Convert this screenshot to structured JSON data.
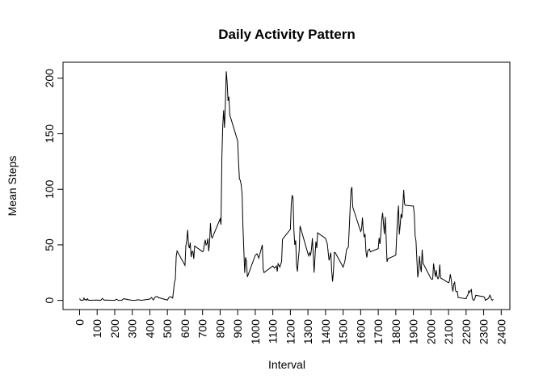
{
  "chart_data": {
    "type": "line",
    "title": "Daily Activity Pattern",
    "xlabel": "Interval",
    "ylabel": "Mean Steps",
    "color": "#000000",
    "x": [
      0,
      5,
      10,
      15,
      20,
      25,
      30,
      35,
      40,
      45,
      50,
      55,
      100,
      110,
      120,
      130,
      140,
      150,
      200,
      210,
      220,
      230,
      240,
      250,
      300,
      310,
      320,
      330,
      340,
      350,
      400,
      410,
      420,
      430,
      440,
      450,
      500,
      510,
      520,
      530,
      540,
      545,
      550,
      555,
      600,
      605,
      610,
      615,
      620,
      625,
      630,
      635,
      640,
      645,
      650,
      655,
      700,
      705,
      710,
      715,
      720,
      725,
      730,
      735,
      740,
      745,
      750,
      755,
      800,
      805,
      810,
      815,
      820,
      825,
      830,
      835,
      840,
      845,
      850,
      855,
      900,
      905,
      910,
      915,
      920,
      925,
      930,
      935,
      940,
      945,
      950,
      955,
      1000,
      1010,
      1020,
      1030,
      1040,
      1045,
      1050,
      1100,
      1110,
      1120,
      1125,
      1130,
      1140,
      1150,
      1155,
      1200,
      1205,
      1210,
      1215,
      1220,
      1225,
      1230,
      1235,
      1240,
      1245,
      1250,
      1255,
      1300,
      1305,
      1310,
      1315,
      1320,
      1325,
      1330,
      1335,
      1340,
      1345,
      1350,
      1355,
      1400,
      1410,
      1420,
      1430,
      1435,
      1440,
      1445,
      1450,
      1455,
      1500,
      1510,
      1520,
      1525,
      1530,
      1535,
      1540,
      1545,
      1550,
      1555,
      1600,
      1605,
      1610,
      1615,
      1620,
      1625,
      1630,
      1635,
      1640,
      1645,
      1650,
      1655,
      1700,
      1705,
      1710,
      1715,
      1720,
      1725,
      1730,
      1735,
      1740,
      1745,
      1750,
      1755,
      1800,
      1805,
      1810,
      1815,
      1820,
      1825,
      1830,
      1835,
      1840,
      1845,
      1850,
      1855,
      1900,
      1905,
      1910,
      1915,
      1920,
      1925,
      1930,
      1935,
      1940,
      1945,
      1950,
      1955,
      2000,
      2005,
      2010,
      2015,
      2020,
      2025,
      2030,
      2035,
      2040,
      2045,
      2050,
      2055,
      2100,
      2105,
      2110,
      2115,
      2120,
      2125,
      2130,
      2135,
      2140,
      2145,
      2150,
      2155,
      2200,
      2205,
      2210,
      2215,
      2220,
      2225,
      2230,
      2235,
      2240,
      2245,
      2250,
      2255,
      2300,
      2305,
      2310,
      2315,
      2320,
      2325,
      2330,
      2335,
      2340,
      2345,
      2350,
      2355
    ],
    "values": [
      1.7,
      0.3,
      0.1,
      0.2,
      0.1,
      2.1,
      0.5,
      0.9,
      0,
      1.5,
      0.3,
      0.1,
      0.3,
      0.2,
      0,
      1.8,
      0.2,
      0.3,
      0,
      1.1,
      0,
      0,
      0,
      1.5,
      0,
      0,
      0.2,
      0.6,
      0.5,
      0,
      1.2,
      2.6,
      0.3,
      3,
      3.5,
      2.5,
      0.3,
      3,
      3.3,
      2.1,
      16,
      19,
      39.5,
      44.5,
      31.5,
      49.3,
      53.8,
      63.5,
      50,
      47,
      52,
      39,
      44,
      44.2,
      37.4,
      49,
      43.8,
      44.4,
      50.5,
      54.5,
      49.9,
      50.9,
      55.7,
      44.3,
      52.3,
      69.5,
      57.8,
      56.2,
      73.4,
      68.2,
      129.4,
      157.5,
      171.2,
      155.4,
      177.3,
      206.2,
      195.9,
      179.6,
      183.4,
      167,
      143.5,
      124,
      109.1,
      108.1,
      103.7,
      96,
      66.2,
      45.2,
      24.8,
      38.8,
      35,
      21.1,
      40.6,
      42,
      38,
      44,
      50,
      28,
      25,
      31,
      29,
      31,
      26,
      33,
      30,
      35,
      55,
      64,
      87,
      94.8,
      92,
      63,
      50,
      54,
      32,
      26,
      37,
      45,
      67,
      42,
      40,
      43,
      41,
      46,
      56,
      42,
      25,
      39,
      53,
      47,
      60.8,
      55.8,
      51,
      36,
      43,
      27,
      17,
      26,
      43,
      43,
      30,
      35,
      46,
      47,
      48,
      65,
      82.9,
      98.7,
      102.1,
      84,
      62,
      64,
      74.5,
      63,
      56.9,
      59.8,
      43.9,
      38.6,
      44.7,
      45.5,
      46.2,
      43.7,
      46.6,
      56.3,
      50.7,
      61.2,
      72.7,
      78.9,
      68.9,
      59.7,
      75.1,
      56.5,
      34.8,
      37.5,
      40.7,
      58,
      74.7,
      85.3,
      59.3,
      67.8,
      77.7,
      74.2,
      85.3,
      99.5,
      86.6,
      85.6,
      84.9,
      77.8,
      58,
      53.4,
      36.3,
      20.7,
      27.4,
      40,
      30.2,
      25.5,
      45.7,
      33.5,
      19.6,
      19,
      19.3,
      33.3,
      26.8,
      21.2,
      27.3,
      21.3,
      19.5,
      21.3,
      32.3,
      20.2,
      15.9,
      17.2,
      23.5,
      19.2,
      12.5,
      8,
      14.7,
      16.3,
      8.7,
      7.8,
      8.1,
      2.6,
      1.5,
      3.7,
      4.8,
      8.5,
      7.1,
      8.7,
      9.8,
      2.2,
      0.3,
      0.1,
      1.6,
      4.6,
      3.3,
      2.8,
      0,
      0.8,
      1,
      1.6,
      2.6,
      4.7,
      3.3,
      0.6,
      0.2,
      1.1
    ],
    "xlim": [
      -94.2,
      2449.2
    ],
    "ylim": [
      -8.25,
      214.4
    ],
    "xticks": [
      0,
      100,
      200,
      300,
      400,
      500,
      600,
      700,
      800,
      900,
      1000,
      1100,
      1200,
      1300,
      1400,
      1500,
      1600,
      1700,
      1800,
      1900,
      2000,
      2100,
      2200,
      2300,
      2400
    ],
    "yticks": [
      0,
      50,
      100,
      150,
      200
    ]
  }
}
